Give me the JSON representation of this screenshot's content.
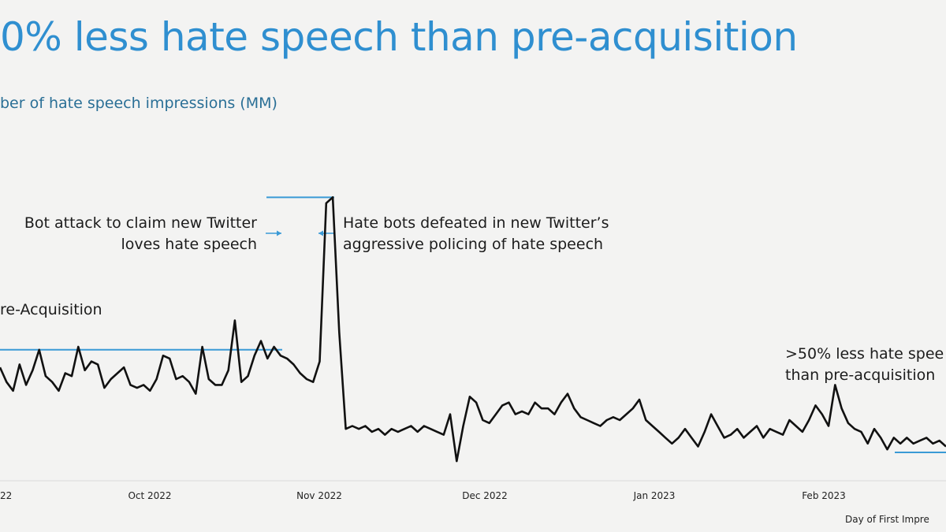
{
  "slide": {
    "title": "0% less hate speech than pre-acquisition",
    "ylabel": "ber of hate speech impressions (MM)"
  },
  "colors": {
    "accent": "#2f8fd0",
    "line": "#111111",
    "ref": "#3a9ad6"
  },
  "chart_data": {
    "type": "line",
    "title": "0% less hate speech than pre-acquisition",
    "ylabel": "ber of hate speech impressions (MM)",
    "xlabel": "Day of First Impre",
    "x_ticks": [
      "22",
      "Oct 2022",
      "Nov 2022",
      "Dec 2022",
      "Jan 2023",
      "Feb 2023"
    ],
    "y_range": [
      0,
      100
    ],
    "grid": false,
    "series": [
      {
        "values": [
          36,
          31,
          28,
          37,
          30,
          35,
          42,
          33,
          31,
          28,
          34,
          33,
          43,
          35,
          38,
          37,
          29,
          32,
          34,
          36,
          30,
          29,
          30,
          28,
          32,
          40,
          39,
          32,
          33,
          31,
          27,
          43,
          32,
          30,
          30,
          35,
          52,
          31,
          33,
          40,
          45,
          39,
          43,
          40,
          39,
          37,
          34,
          32,
          31,
          38,
          92,
          94,
          48,
          15,
          16,
          15,
          16,
          14,
          15,
          13,
          15,
          14,
          15,
          16,
          14,
          16,
          15,
          14,
          13,
          20,
          4,
          16,
          26,
          24,
          18,
          17,
          20,
          23,
          24,
          20,
          21,
          20,
          24,
          22,
          22,
          20,
          24,
          27,
          22,
          19,
          18,
          17,
          16,
          18,
          19,
          18,
          20,
          22,
          25,
          18,
          16,
          14,
          12,
          10,
          12,
          15,
          12,
          9,
          14,
          20,
          16,
          12,
          13,
          15,
          12,
          14,
          16,
          12,
          15,
          14,
          13,
          18,
          16,
          14,
          18,
          23,
          20,
          16,
          30,
          22,
          17,
          15,
          14,
          10,
          15,
          12,
          8,
          12,
          10,
          12,
          10,
          11,
          12,
          10,
          11,
          9
        ]
      }
    ],
    "reference_lines": [
      {
        "label": "re-Acquisition",
        "value": 42
      },
      {
        "label": "",
        "value": 94
      },
      {
        "label": "",
        "value": 7
      }
    ],
    "annotations": [
      {
        "text": [
          "Bot attack to claim new Twitter",
          "loves hate speech"
        ]
      },
      {
        "text": [
          "Hate bots defeated in new Twitter’s",
          "aggressive policing of hate speech"
        ]
      },
      {
        "text": [
          ">50% less hate spee",
          "than pre-acquisition"
        ]
      }
    ]
  }
}
